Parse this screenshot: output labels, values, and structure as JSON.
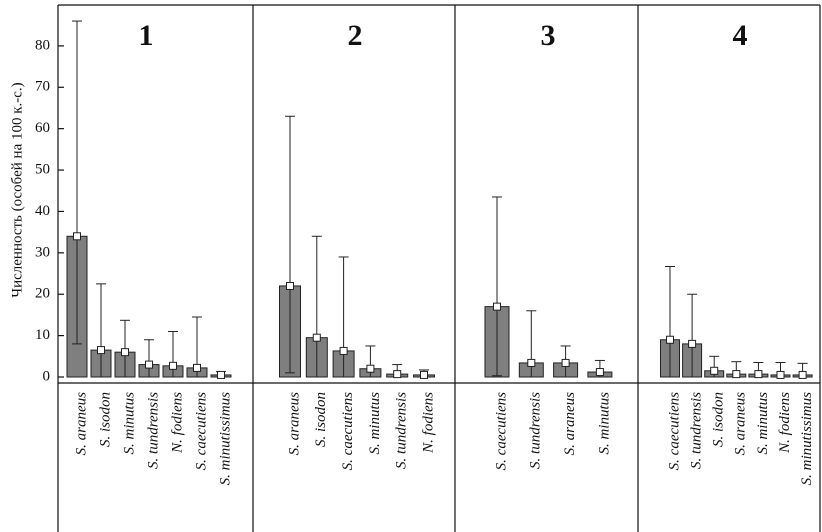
{
  "chart_data": [
    {
      "type": "bar",
      "title": "1",
      "ylabel": "Численность (особей на 100 к.-с.)",
      "ylim": [
        0,
        90
      ],
      "yticks": [
        0,
        10,
        20,
        30,
        40,
        50,
        60,
        70,
        80
      ],
      "categories": [
        "S. araneus",
        "S. isodon",
        "S. minutus",
        "S. tundrensis",
        "N. fodiens",
        "S. caecutiens",
        "S. minutissimus"
      ],
      "values": [
        34,
        6.5,
        6,
        3,
        2.7,
        2.2,
        0.5
      ],
      "upper": [
        86,
        22.5,
        13.7,
        9,
        11,
        14.5,
        1.3
      ],
      "lower": [
        8,
        0,
        0,
        0,
        0,
        0,
        0
      ]
    },
    {
      "type": "bar",
      "title": "2",
      "ylim": [
        0,
        90
      ],
      "categories": [
        "S. araneus",
        "S. isodon",
        "S. caecutiens",
        "S. minutus",
        "S. tundrensis",
        "N. fodiens"
      ],
      "values": [
        22,
        9.5,
        6.3,
        2,
        0.7,
        0.5
      ],
      "upper": [
        63,
        34,
        29,
        7.5,
        3,
        1.7
      ],
      "lower": [
        1,
        0,
        0,
        0,
        0,
        0
      ]
    },
    {
      "type": "bar",
      "title": "3",
      "ylim": [
        0,
        90
      ],
      "categories": [
        "S. caecutiens",
        "S. tundrensis",
        "S. araneus",
        "S. minutus"
      ],
      "values": [
        17,
        3.4,
        3.4,
        1.2
      ],
      "upper": [
        43.5,
        16,
        7.5,
        4
      ],
      "lower": [
        0.3,
        0,
        0,
        0
      ]
    },
    {
      "type": "bar",
      "title": "4",
      "ylim": [
        0,
        90
      ],
      "categories": [
        "S. caecutiens",
        "S. tundrensis",
        "S. isodon",
        "S. araneus",
        "S. minutus",
        "N. fodiens",
        "S. minutissimus"
      ],
      "values": [
        9,
        8,
        1.5,
        0.7,
        0.7,
        0.5,
        0.5
      ],
      "upper": [
        26.7,
        20,
        5,
        3.7,
        3.5,
        3.5,
        3.3
      ],
      "lower": [
        0,
        0,
        0,
        0,
        0,
        0,
        0
      ]
    }
  ]
}
